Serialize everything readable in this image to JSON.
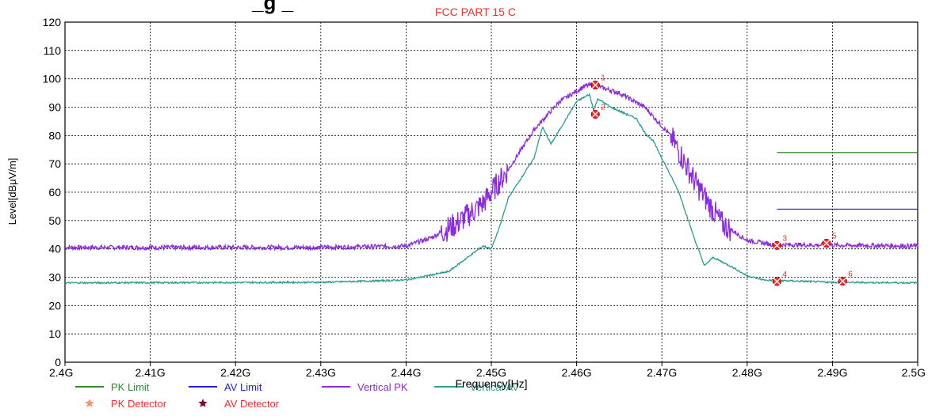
{
  "chart_data": {
    "type": "line",
    "title": "FCC PART 15 C",
    "partial_title": "_g _",
    "xlabel": "Frequency[Hz]",
    "ylabel": "Level[dBμV/m]",
    "xlim": [
      2.4,
      2.5
    ],
    "ylim": [
      0,
      120
    ],
    "x_unit": "GHz",
    "x_tick_labels": [
      "2.4G",
      "2.41G",
      "2.42G",
      "2.43G",
      "2.44G",
      "2.45G",
      "2.46G",
      "2.47G",
      "2.48G",
      "2.49G",
      "2.5G"
    ],
    "y_ticks": [
      0,
      10,
      20,
      30,
      40,
      50,
      60,
      70,
      80,
      90,
      100,
      110,
      120
    ],
    "grid": true,
    "legend_placement": "bottom-left",
    "series": [
      {
        "name": "PK Limit",
        "color": "#2e8b2e",
        "x": [
          2.4835,
          2.5
        ],
        "y": [
          74,
          74
        ]
      },
      {
        "name": "AV Limit",
        "color": "#1f1fe6",
        "x": [
          2.4835,
          2.5
        ],
        "y": [
          54,
          54
        ]
      },
      {
        "name": "Vertical PK",
        "color": "#8a2be2",
        "noise": 0.8,
        "x": [
          2.4,
          2.43,
          2.44,
          2.443,
          2.446,
          2.449,
          2.452,
          2.455,
          2.458,
          2.461,
          2.462,
          2.465,
          2.468,
          2.471,
          2.474,
          2.477,
          2.48,
          2.483,
          2.49,
          2.5
        ],
        "y": [
          40.5,
          40.5,
          41,
          44,
          49,
          56,
          68,
          82,
          92,
          97.5,
          97.8,
          95,
          90,
          80,
          63,
          49,
          43,
          41.5,
          41.3,
          41
        ]
      },
      {
        "name": "Vertical AV",
        "color": "#2a9d8f",
        "noise": 0.3,
        "x": [
          2.4,
          2.43,
          2.44,
          2.445,
          2.449,
          2.45,
          2.451,
          2.452,
          2.455,
          2.456,
          2.457,
          2.46,
          2.4615,
          2.462,
          2.4625,
          2.464,
          2.467,
          2.468,
          2.469,
          2.472,
          2.474,
          2.475,
          2.476,
          2.478,
          2.48,
          2.482,
          2.49,
          2.5
        ],
        "y": [
          28,
          28.2,
          29,
          32,
          41,
          40,
          48,
          58,
          72,
          83,
          77,
          92,
          94.5,
          89,
          93,
          90,
          86,
          81,
          78,
          60,
          42,
          34,
          37,
          34,
          30.5,
          29,
          28.2,
          28
        ]
      }
    ],
    "markers": [
      {
        "label": "1",
        "x": 2.4622,
        "y": 97.8,
        "detector": "PK Detector"
      },
      {
        "label": "2",
        "x": 2.4622,
        "y": 87.5,
        "detector": "AV Detector"
      },
      {
        "label": "3",
        "x": 2.4835,
        "y": 41.2,
        "detector": "PK Detector"
      },
      {
        "label": "4",
        "x": 2.4835,
        "y": 28.5,
        "detector": "AV Detector"
      },
      {
        "label": "5",
        "x": 2.4893,
        "y": 42.0,
        "detector": "PK Detector"
      },
      {
        "label": "6",
        "x": 2.4912,
        "y": 28.6,
        "detector": "AV Detector"
      }
    ],
    "marker_color": "#ff2a2a",
    "legend": [
      {
        "name": "PK Limit",
        "kind": "line",
        "color": "#2e8b2e",
        "text_color": "#2e8b2e"
      },
      {
        "name": "AV Limit",
        "kind": "line",
        "color": "#1f1fe6",
        "text_color": "#1f1fe6"
      },
      {
        "name": "Vertical PK",
        "kind": "line",
        "color": "#8a2be2",
        "text_color": "#8a2be2"
      },
      {
        "name": "Vertical AV",
        "kind": "line",
        "color": "#2a9d8f",
        "text_color": "#2a9d8f"
      },
      {
        "name": "PK Detector",
        "kind": "star",
        "color": "#ff8c69",
        "text_color": "#ff2a2a"
      },
      {
        "name": "AV Detector",
        "kind": "star",
        "color": "#8b0020",
        "text_color": "#ff2a2a"
      }
    ]
  }
}
